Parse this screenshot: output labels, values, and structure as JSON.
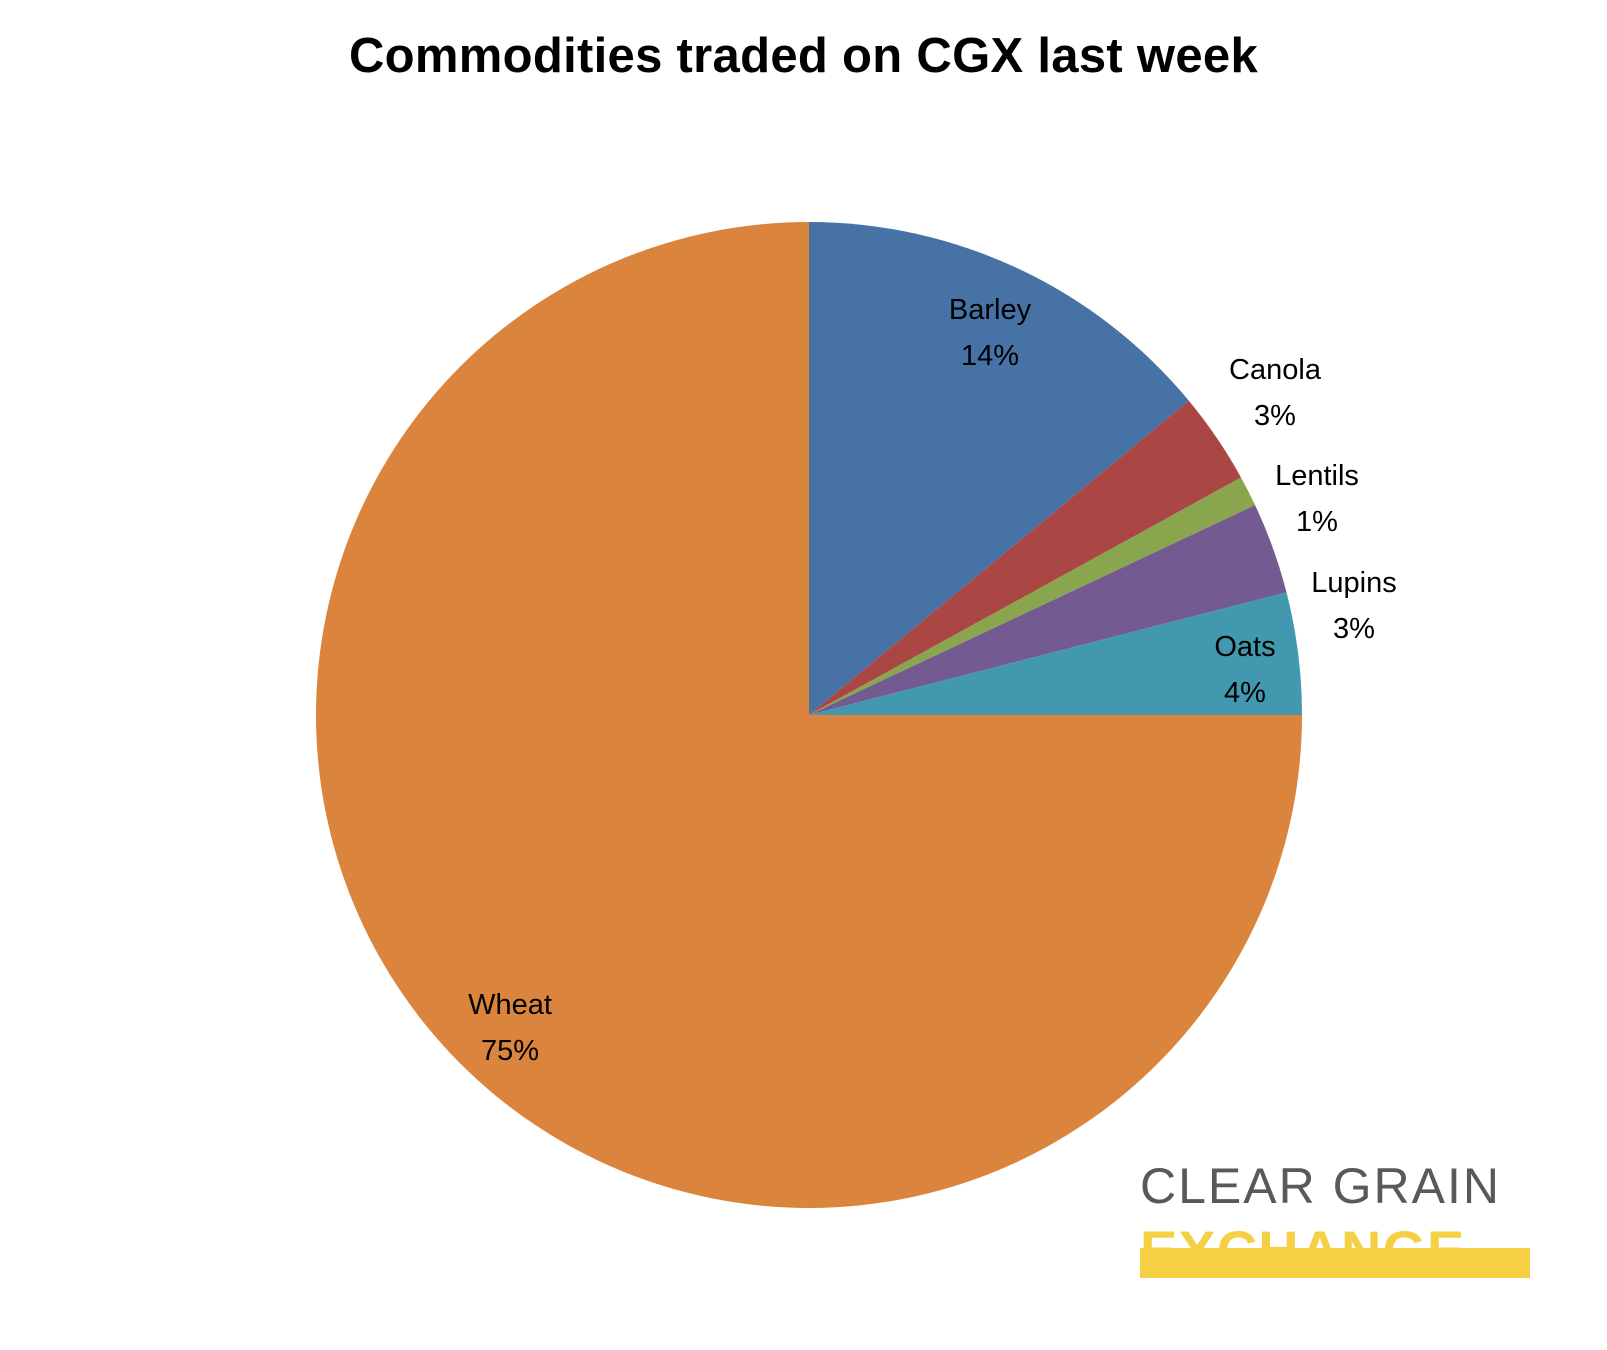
{
  "chart_data": {
    "type": "pie",
    "title": "Commodities traded on CGX last week",
    "start_angle_deg": 0,
    "direction": "clockwise",
    "slices": [
      {
        "label": "Barley",
        "value": 14,
        "display": "14%",
        "color": "#4672a6"
      },
      {
        "label": "Canola",
        "value": 3,
        "display": "3%",
        "color": "#aa4744"
      },
      {
        "label": "Lentils",
        "value": 1,
        "display": "1%",
        "color": "#89a54e"
      },
      {
        "label": "Lupins",
        "value": 3,
        "display": "3%",
        "color": "#735a91"
      },
      {
        "label": "Oats",
        "value": 4,
        "display": "4%",
        "color": "#4198af"
      },
      {
        "label": "Wheat",
        "value": 75,
        "display": "75%",
        "color": "#db843d"
      }
    ]
  },
  "logo": {
    "line1": "CLEAR GRAIN",
    "line2": "EXCHANGE",
    "line1_color": "#595959",
    "line2_color": "#f5d043"
  }
}
